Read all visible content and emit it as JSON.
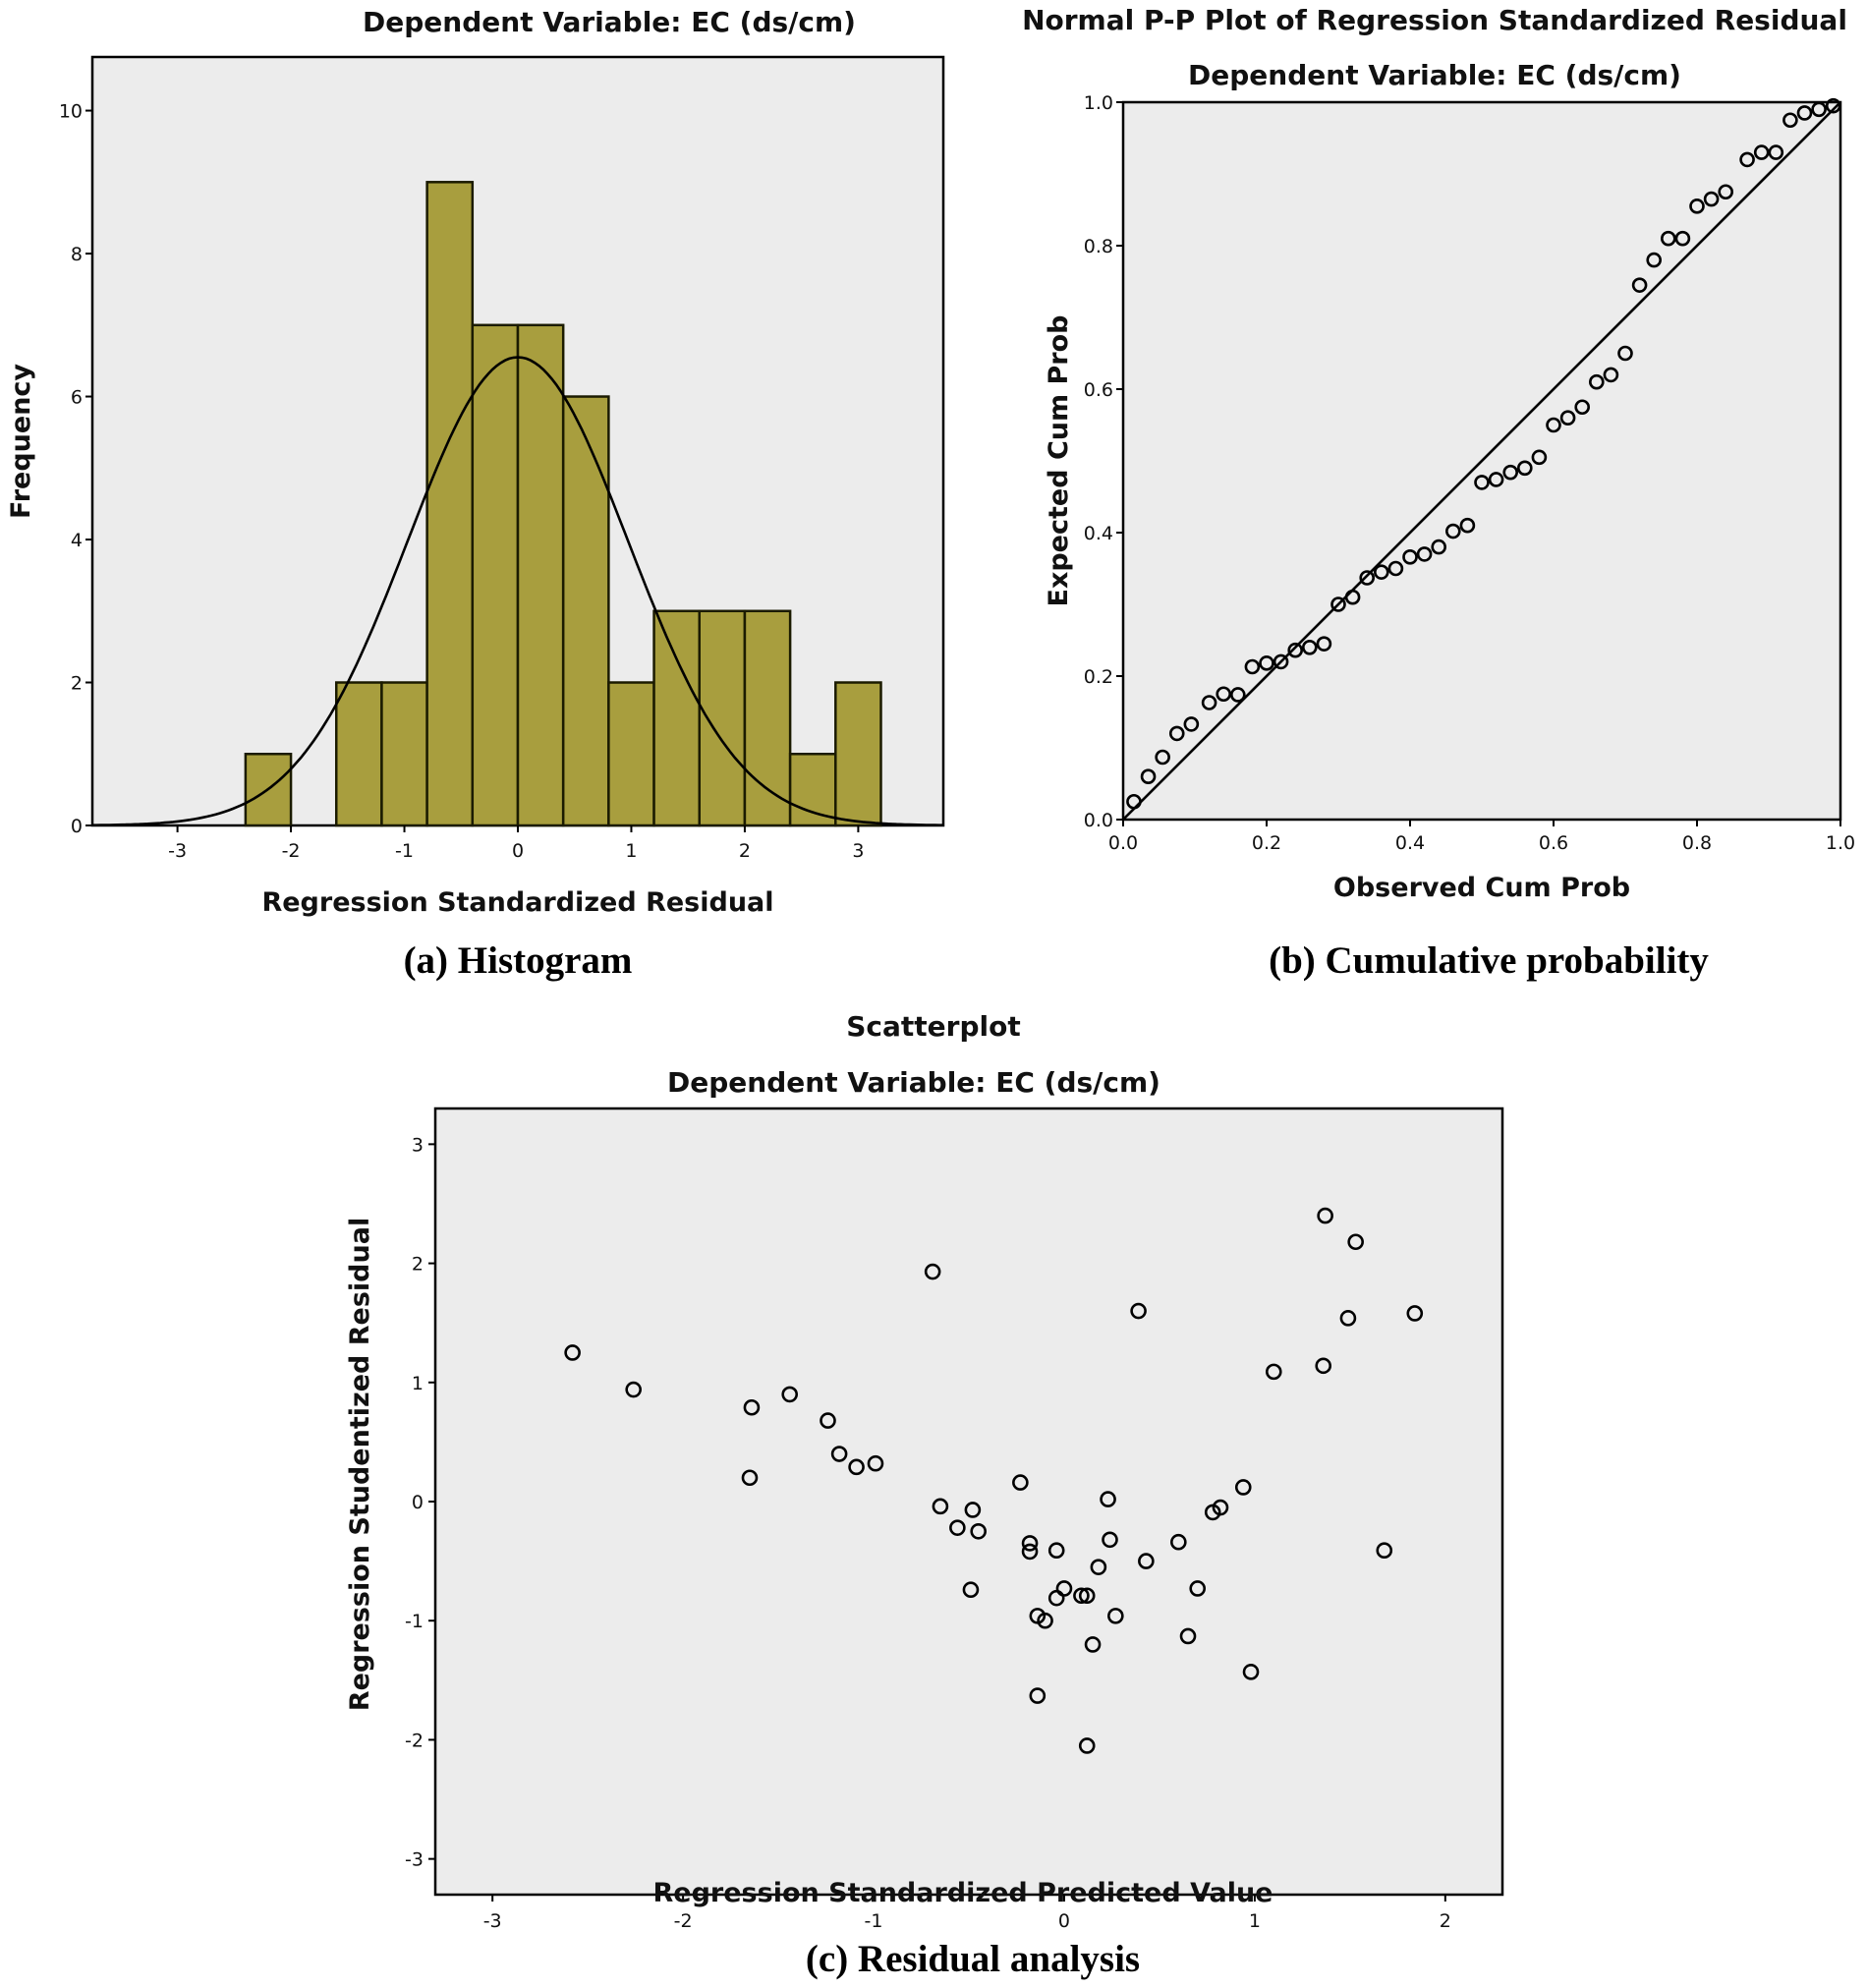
{
  "chart_data": [
    {
      "id": "histogram",
      "type": "bar",
      "title": "Dependent Variable: EC (ds/cm)",
      "xlabel": "Regression Standardized Residual",
      "ylabel": "Frequency",
      "caption": "(a) Histogram",
      "xlim": [
        -3.75,
        3.75
      ],
      "ylim": [
        0,
        10.75
      ],
      "xticks": [
        -3,
        -2,
        -1,
        0,
        1,
        2,
        3
      ],
      "yticks": [
        0,
        2,
        4,
        6,
        8,
        10
      ],
      "bin_width": 0.4,
      "bins": [
        {
          "start": -2.4,
          "count": 1
        },
        {
          "start": -1.6,
          "count": 2
        },
        {
          "start": -1.2,
          "count": 2
        },
        {
          "start": -0.8,
          "count": 9
        },
        {
          "start": -0.4,
          "count": 7
        },
        {
          "start": 0.0,
          "count": 7
        },
        {
          "start": 0.4,
          "count": 6
        },
        {
          "start": 0.8,
          "count": 2
        },
        {
          "start": 1.2,
          "count": 3
        },
        {
          "start": 1.6,
          "count": 3
        },
        {
          "start": 2.0,
          "count": 3
        },
        {
          "start": 2.4,
          "count": 1
        },
        {
          "start": 2.8,
          "count": 2
        }
      ],
      "normal_curve": {
        "mean": 0.0,
        "sd": 0.973,
        "peak": 6.55
      }
    },
    {
      "id": "pp",
      "type": "scatter",
      "title": "Normal P-P Plot of Regression Standardized Residual",
      "subtitle": "Dependent Variable: EC (ds/cm)",
      "xlabel": "Observed Cum Prob",
      "ylabel": "Expected Cum Prob",
      "caption": "(b) Cumulative probability",
      "xlim": [
        0,
        1
      ],
      "ylim": [
        0,
        1
      ],
      "xticks": [
        "0.0",
        "0.2",
        "0.4",
        "0.6",
        "0.8",
        "1.0"
      ],
      "yticks": [
        "0.0",
        "0.2",
        "0.4",
        "0.6",
        "0.8",
        "1.0"
      ],
      "reference_line": [
        [
          0,
          0
        ],
        [
          1,
          1
        ]
      ],
      "points": [
        [
          0.015,
          0.025
        ],
        [
          0.035,
          0.06
        ],
        [
          0.055,
          0.087
        ],
        [
          0.075,
          0.12
        ],
        [
          0.095,
          0.133
        ],
        [
          0.12,
          0.163
        ],
        [
          0.14,
          0.175
        ],
        [
          0.16,
          0.174
        ],
        [
          0.18,
          0.213
        ],
        [
          0.2,
          0.218
        ],
        [
          0.22,
          0.22
        ],
        [
          0.24,
          0.236
        ],
        [
          0.26,
          0.24
        ],
        [
          0.28,
          0.245
        ],
        [
          0.3,
          0.3
        ],
        [
          0.32,
          0.31
        ],
        [
          0.34,
          0.337
        ],
        [
          0.36,
          0.345
        ],
        [
          0.38,
          0.35
        ],
        [
          0.4,
          0.366
        ],
        [
          0.42,
          0.37
        ],
        [
          0.44,
          0.38
        ],
        [
          0.46,
          0.402
        ],
        [
          0.48,
          0.41
        ],
        [
          0.5,
          0.47
        ],
        [
          0.52,
          0.474
        ],
        [
          0.54,
          0.484
        ],
        [
          0.56,
          0.49
        ],
        [
          0.58,
          0.505
        ],
        [
          0.6,
          0.55
        ],
        [
          0.62,
          0.56
        ],
        [
          0.64,
          0.575
        ],
        [
          0.66,
          0.61
        ],
        [
          0.68,
          0.62
        ],
        [
          0.7,
          0.65
        ],
        [
          0.72,
          0.745
        ],
        [
          0.74,
          0.78
        ],
        [
          0.76,
          0.81
        ],
        [
          0.78,
          0.81
        ],
        [
          0.8,
          0.855
        ],
        [
          0.82,
          0.865
        ],
        [
          0.84,
          0.875
        ],
        [
          0.87,
          0.92
        ],
        [
          0.89,
          0.93
        ],
        [
          0.91,
          0.93
        ],
        [
          0.93,
          0.975
        ],
        [
          0.95,
          0.985
        ],
        [
          0.97,
          0.99
        ],
        [
          0.99,
          0.995
        ]
      ]
    },
    {
      "id": "scatter",
      "type": "scatter",
      "title": "Scatterplot",
      "subtitle": "Dependent Variable: EC (ds/cm)",
      "xlabel": "Regression Standardized Predicted Value",
      "ylabel": "Regression Studentized Residual",
      "caption": "(c) Residual analysis",
      "xlim": [
        -3.3,
        2.3
      ],
      "ylim": [
        -3.3,
        3.3
      ],
      "xticks": [
        -3,
        -2,
        -1,
        0,
        1,
        2
      ],
      "yticks": [
        -3,
        -2,
        -1,
        0,
        1,
        2,
        3
      ],
      "points": [
        [
          -2.58,
          1.25
        ],
        [
          -2.26,
          0.94
        ],
        [
          -1.64,
          0.79
        ],
        [
          -1.65,
          0.2
        ],
        [
          -1.44,
          0.9
        ],
        [
          -1.24,
          0.68
        ],
        [
          -1.18,
          0.4
        ],
        [
          -1.09,
          0.29
        ],
        [
          -0.99,
          0.32
        ],
        [
          -0.69,
          1.93
        ],
        [
          -0.65,
          -0.04
        ],
        [
          -0.56,
          -0.22
        ],
        [
          -0.48,
          -0.07
        ],
        [
          -0.45,
          -0.25
        ],
        [
          -0.49,
          -0.74
        ],
        [
          -0.23,
          0.16
        ],
        [
          -0.18,
          -0.35
        ],
        [
          -0.18,
          -0.42
        ],
        [
          -0.14,
          -0.96
        ],
        [
          -0.1,
          -1.0
        ],
        [
          -0.14,
          -1.63
        ],
        [
          -0.04,
          -0.41
        ],
        [
          -0.04,
          -0.81
        ],
        [
          0.0,
          -0.73
        ],
        [
          0.09,
          -0.79
        ],
        [
          0.12,
          -0.79
        ],
        [
          0.12,
          -2.05
        ],
        [
          0.15,
          -1.2
        ],
        [
          0.18,
          -0.55
        ],
        [
          0.23,
          0.02
        ],
        [
          0.24,
          -0.32
        ],
        [
          0.27,
          -0.96
        ],
        [
          0.39,
          1.6
        ],
        [
          0.43,
          -0.5
        ],
        [
          0.6,
          -0.34
        ],
        [
          0.65,
          -1.13
        ],
        [
          0.7,
          -0.73
        ],
        [
          0.78,
          -0.09
        ],
        [
          0.82,
          -0.05
        ],
        [
          0.94,
          0.12
        ],
        [
          0.98,
          -1.43
        ],
        [
          1.1,
          1.09
        ],
        [
          1.36,
          1.14
        ],
        [
          1.37,
          2.4
        ],
        [
          1.49,
          1.54
        ],
        [
          1.53,
          2.18
        ],
        [
          1.68,
          -0.41
        ],
        [
          1.84,
          1.58
        ]
      ]
    }
  ]
}
